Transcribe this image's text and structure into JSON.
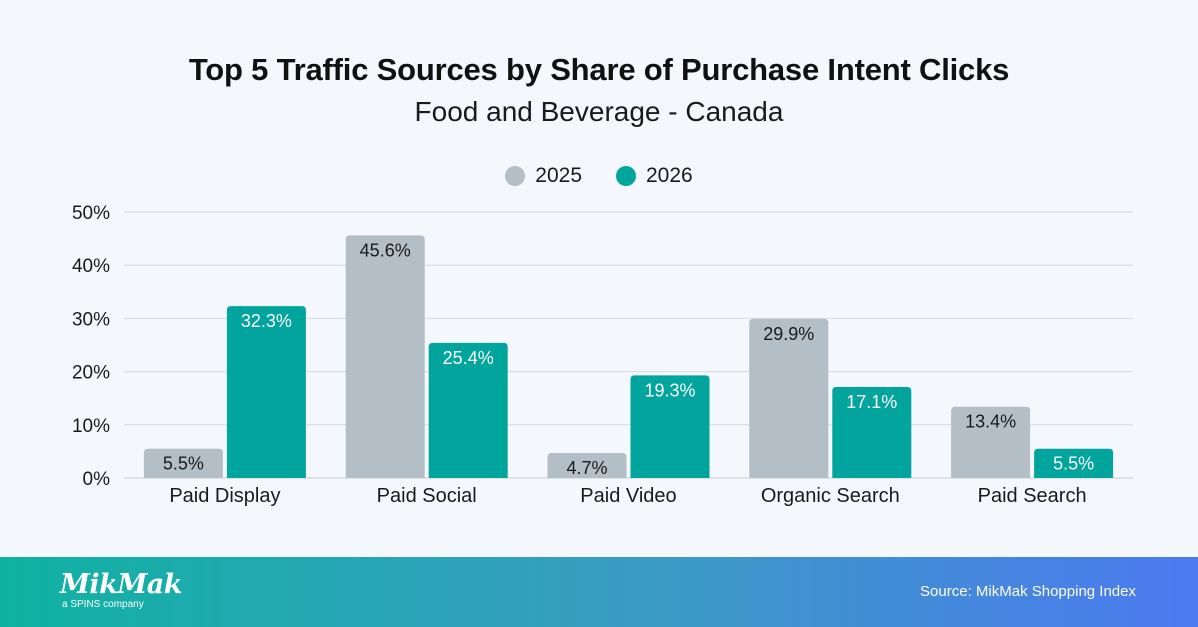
{
  "chart_data": {
    "type": "bar",
    "title": "Top 5 Traffic Sources by Share of Purchase Intent Clicks",
    "subtitle": "Food and Beverage - Canada",
    "categories": [
      "Paid Display",
      "Paid Social",
      "Paid Video",
      "Organic Search",
      "Paid Search"
    ],
    "series": [
      {
        "name": "2025",
        "color": "#b4bec6",
        "values": [
          5.5,
          45.6,
          4.7,
          29.9,
          13.4
        ],
        "labels": [
          "5.5%",
          "45.6%",
          "4.7%",
          "29.9%",
          "13.4%"
        ]
      },
      {
        "name": "2026",
        "color": "#02a59d",
        "values": [
          32.3,
          25.4,
          19.3,
          17.1,
          5.5
        ],
        "labels": [
          "32.3%",
          "25.4%",
          "19.3%",
          "17.1%",
          "5.5%"
        ]
      }
    ],
    "yticks": [
      "0%",
      "10%",
      "20%",
      "30%",
      "40%",
      "50%"
    ],
    "ylim": [
      0,
      50
    ],
    "grid": true,
    "legend": "top-center"
  },
  "footer": {
    "logo_text": "MikMak",
    "logo_subtext": "a SPINS company",
    "source": "Source: MikMak Shopping Index"
  }
}
